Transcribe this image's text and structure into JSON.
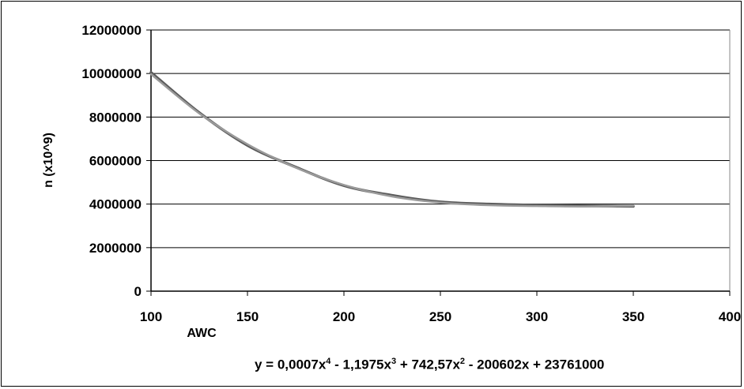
{
  "chart_data": {
    "type": "line",
    "title": "",
    "xlabel": "AWC",
    "ylabel": "n (x10^9)",
    "xlim": [
      100,
      400
    ],
    "ylim": [
      0,
      12000000
    ],
    "x_ticks": [
      "100",
      "150",
      "200",
      "250",
      "300",
      "350",
      "400"
    ],
    "y_ticks": [
      "0",
      "2000000",
      "4000000",
      "6000000",
      "8000000",
      "10000000",
      "12000000"
    ],
    "grid": "horizontal",
    "legend": "none",
    "series": [
      {
        "style": "data",
        "color": "#5a5a5a",
        "x": [
          100,
          125,
          150,
          175,
          200,
          225,
          250,
          275,
          300,
          325,
          350
        ],
        "y": [
          10050000,
          8200000,
          6700000,
          5700000,
          4850000,
          4400000,
          4100000,
          4000000,
          3950000,
          3920000,
          3900000
        ]
      },
      {
        "style": "trendline",
        "color": "#9a9a9a",
        "x": [
          100,
          125,
          150,
          175,
          200,
          225,
          250,
          275,
          300,
          325,
          350
        ],
        "y": [
          9970000,
          8170000,
          6750000,
          5680000,
          4880000,
          4350000,
          4070000,
          3950000,
          3910000,
          3890000,
          3930000
        ]
      }
    ],
    "annotation": {
      "prefix": "y = 0,0007x",
      "p1": "4",
      "t1": " - 1,1975x",
      "p2": "3",
      "t2": " + 742,57x",
      "p3": "2",
      "t3": " - 200602x + 23761000"
    }
  }
}
